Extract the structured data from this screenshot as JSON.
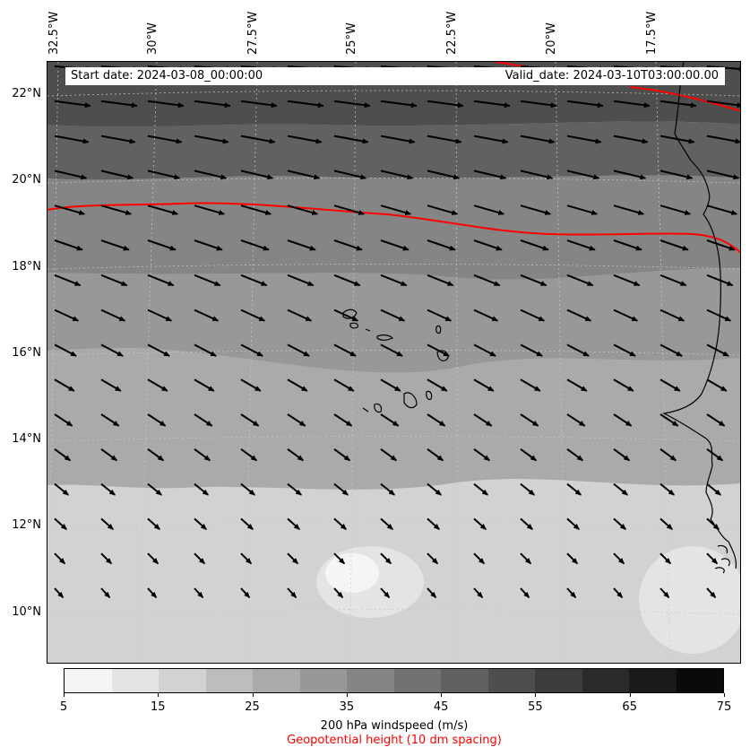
{
  "header": {
    "start_date": "Start date: 2024-03-08_00:00:00",
    "valid_date": "Valid_date: 2024-03-10T03:00:00.00"
  },
  "map": {
    "longitude_labels": [
      "32.5°W",
      "30°W",
      "27.5°W",
      "25°W",
      "22.5°W",
      "20°W",
      "17.5°W"
    ],
    "latitude_labels": [
      "22°N",
      "20°N",
      "18°N",
      "16°N",
      "14°N",
      "12°N",
      "10°N"
    ],
    "contour_color": "#ff0000",
    "coastline_color": "#000000"
  },
  "colorbar": {
    "ticks": [
      "5",
      "15",
      "25",
      "35",
      "45",
      "55",
      "65",
      "75"
    ],
    "colors": [
      "#f5f5f5",
      "#e4e4e4",
      "#d2d2d2",
      "#bdbdbd",
      "#aaaaaa",
      "#989898",
      "#858585",
      "#727272",
      "#616161",
      "#4e4e4e",
      "#3c3c3c",
      "#2a2a2a",
      "#1a1a1a",
      "#0a0a0a"
    ],
    "label": "200 hPa windspeed (m/s)",
    "sublabel": "Geopotential height (10 dm spacing)"
  }
}
